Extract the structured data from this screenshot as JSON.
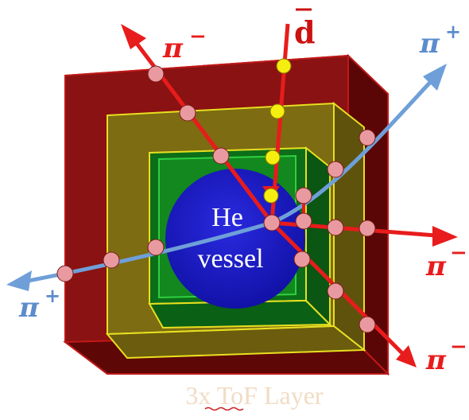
{
  "vessel": {
    "line1": "He",
    "line2": "vessel"
  },
  "frame_label": "3x ToF Layer",
  "particles": {
    "antideuteron": "d",
    "pi_minus_label": "π",
    "pi_minus_sup": "−",
    "pi_plus_label": "π",
    "pi_plus_sup": "+"
  },
  "colors": {
    "outer_layer": "#7a0d0d",
    "middle_layer": "#7a6a10",
    "inner_layer": "#0a6a14",
    "vessel": "#1c1cc8",
    "pi_minus_track": "#e81c1c",
    "pi_plus_track": "#6f9fd8",
    "hit_pink": "#e89aa0",
    "hit_yellow": "#f5ee10",
    "pi_minus_text": "#e81c1c",
    "pi_plus_text": "#5b8ccc"
  }
}
